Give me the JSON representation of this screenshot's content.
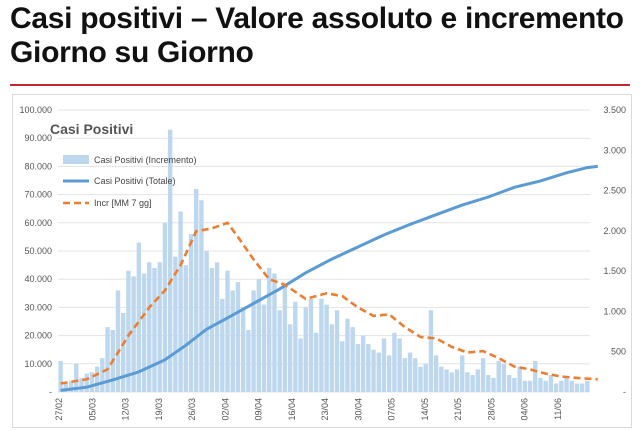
{
  "header": {
    "title_line1": "Casi positivi – Valore assoluto e incremento",
    "title_line2": "Giorno su Giorno"
  },
  "chart_data": {
    "type": "bar",
    "title": "Casi Positivi",
    "legend_position": "top-left",
    "grid": true,
    "y_left": {
      "lim": [
        0,
        100000
      ],
      "ticks": [
        "-",
        "10.000",
        "20.000",
        "30.000",
        "40.000",
        "50.000",
        "60.000",
        "70.000",
        "80.000",
        "90.000",
        "100.000"
      ]
    },
    "y_right": {
      "lim": [
        0,
        3500
      ],
      "ticks": [
        "-",
        "500",
        "1.000",
        "1.500",
        "2.000",
        "2.500",
        "3.000",
        "3.500"
      ]
    },
    "x_tick_labels": [
      "27/02",
      "05/03",
      "12/03",
      "19/03",
      "26/03",
      "02/04",
      "09/04",
      "16/04",
      "23/04",
      "30/04",
      "07/05",
      "14/05",
      "21/05",
      "28/05",
      "04/06",
      "11/06"
    ],
    "colors": {
      "bars": "#bdd7ee",
      "total": "#5b9bd5",
      "ma7": "#ed7d31"
    },
    "series": [
      {
        "name": "Casi Positivi (Incremento)",
        "axis": "left",
        "style": "bar",
        "values": [
          11000,
          3000,
          4000,
          10000,
          5000,
          6500,
          7000,
          9000,
          12000,
          23000,
          22000,
          36000,
          28000,
          43000,
          41000,
          53000,
          42000,
          46000,
          44000,
          46000,
          60000,
          93000,
          48000,
          64000,
          45000,
          56000,
          72000,
          68000,
          50000,
          44000,
          46000,
          33000,
          43000,
          36000,
          39000,
          30000,
          22000,
          36000,
          40000,
          31000,
          44000,
          42000,
          29000,
          38000,
          24000,
          32000,
          19000,
          30000,
          33000,
          21000,
          33000,
          31000,
          24000,
          29000,
          18000,
          26000,
          23000,
          17000,
          20000,
          17000,
          15000,
          14000,
          19000,
          13000,
          21000,
          19000,
          12000,
          14000,
          12000,
          9000,
          10000,
          29000,
          13000,
          9000,
          8000,
          7000,
          8000,
          13000,
          7000,
          6000,
          8000,
          12000,
          6000,
          5000,
          11000,
          10000,
          6000,
          5000,
          9000,
          4000,
          4000,
          11000,
          5000,
          4000,
          6000,
          3000,
          4000,
          5000,
          4000,
          3000,
          3000,
          4000
        ]
      },
      {
        "name": "Casi Positivi (Totale)",
        "axis": "right",
        "style": "line",
        "points": [
          [
            0,
            20
          ],
          [
            5,
            60
          ],
          [
            10,
            150
          ],
          [
            15,
            250
          ],
          [
            20,
            400
          ],
          [
            24,
            580
          ],
          [
            28,
            780
          ],
          [
            32,
            920
          ],
          [
            37,
            1100
          ],
          [
            42,
            1280
          ],
          [
            47,
            1480
          ],
          [
            52,
            1650
          ],
          [
            57,
            1800
          ],
          [
            62,
            1950
          ],
          [
            67,
            2080
          ],
          [
            72,
            2200
          ],
          [
            77,
            2320
          ],
          [
            82,
            2420
          ],
          [
            87,
            2540
          ],
          [
            92,
            2620
          ],
          [
            97,
            2720
          ],
          [
            101,
            2785
          ],
          [
            103,
            2800
          ]
        ]
      },
      {
        "name": "Incr [MM 7 gg]",
        "axis": "left",
        "style": "dashed-line",
        "points": [
          [
            0,
            3000
          ],
          [
            5,
            4500
          ],
          [
            9,
            8000
          ],
          [
            13,
            20000
          ],
          [
            17,
            30000
          ],
          [
            20,
            36000
          ],
          [
            23,
            45000
          ],
          [
            26,
            57000
          ],
          [
            29,
            58000
          ],
          [
            32,
            60000
          ],
          [
            34,
            55000
          ],
          [
            37,
            47000
          ],
          [
            40,
            40000
          ],
          [
            43,
            38000
          ],
          [
            47,
            33000
          ],
          [
            51,
            35000
          ],
          [
            54,
            34000
          ],
          [
            57,
            30000
          ],
          [
            60,
            27000
          ],
          [
            63,
            27500
          ],
          [
            66,
            23000
          ],
          [
            69,
            19500
          ],
          [
            72,
            19000
          ],
          [
            75,
            16000
          ],
          [
            78,
            14000
          ],
          [
            81,
            14500
          ],
          [
            84,
            12000
          ],
          [
            87,
            9000
          ],
          [
            90,
            8000
          ],
          [
            93,
            6500
          ],
          [
            96,
            5500
          ],
          [
            99,
            5000
          ],
          [
            103,
            4500
          ]
        ]
      }
    ]
  }
}
